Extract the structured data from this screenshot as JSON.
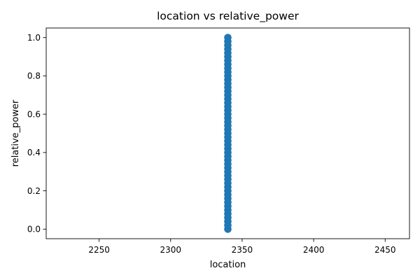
{
  "chart_data": {
    "type": "scatter",
    "title": "location vs relative_power",
    "xlabel": "location",
    "ylabel": "relative_power",
    "xlim": [
      2213,
      2467
    ],
    "ylim": [
      -0.05,
      1.05
    ],
    "xticks": [
      2250,
      2300,
      2350,
      2400,
      2450
    ],
    "yticks": [
      0.0,
      0.2,
      0.4,
      0.6,
      0.8,
      1.0
    ],
    "xtick_labels": [
      "2250",
      "2300",
      "2350",
      "2400",
      "2450"
    ],
    "ytick_labels": [
      "0.0",
      "0.2",
      "0.4",
      "0.6",
      "0.8",
      "1.0"
    ],
    "grid": false,
    "legend": false,
    "series": [
      {
        "color": "#1f77b4",
        "x": [
          2340,
          2340,
          2340,
          2340,
          2340,
          2340,
          2340,
          2340,
          2340,
          2340,
          2340,
          2340,
          2340,
          2340,
          2340,
          2340,
          2340,
          2340,
          2340,
          2340,
          2340,
          2340,
          2340,
          2340,
          2340,
          2340,
          2340,
          2340,
          2340,
          2340,
          2340,
          2340,
          2340,
          2340,
          2340,
          2340,
          2340,
          2340,
          2340,
          2340,
          2340,
          2340,
          2340,
          2340,
          2340,
          2340,
          2340,
          2340,
          2340,
          2340,
          2340
        ],
        "y": [
          0.0,
          0.02,
          0.04,
          0.06,
          0.08,
          0.1,
          0.12,
          0.14,
          0.16,
          0.18,
          0.2,
          0.22,
          0.24,
          0.26,
          0.28,
          0.3,
          0.32,
          0.34,
          0.36,
          0.38,
          0.4,
          0.42,
          0.44,
          0.46,
          0.48,
          0.5,
          0.52,
          0.54,
          0.56,
          0.58,
          0.6,
          0.62,
          0.64,
          0.66,
          0.68,
          0.7,
          0.72,
          0.74,
          0.76,
          0.78,
          0.8,
          0.82,
          0.84,
          0.86,
          0.88,
          0.9,
          0.92,
          0.94,
          0.96,
          0.98,
          1.0
        ]
      }
    ]
  }
}
